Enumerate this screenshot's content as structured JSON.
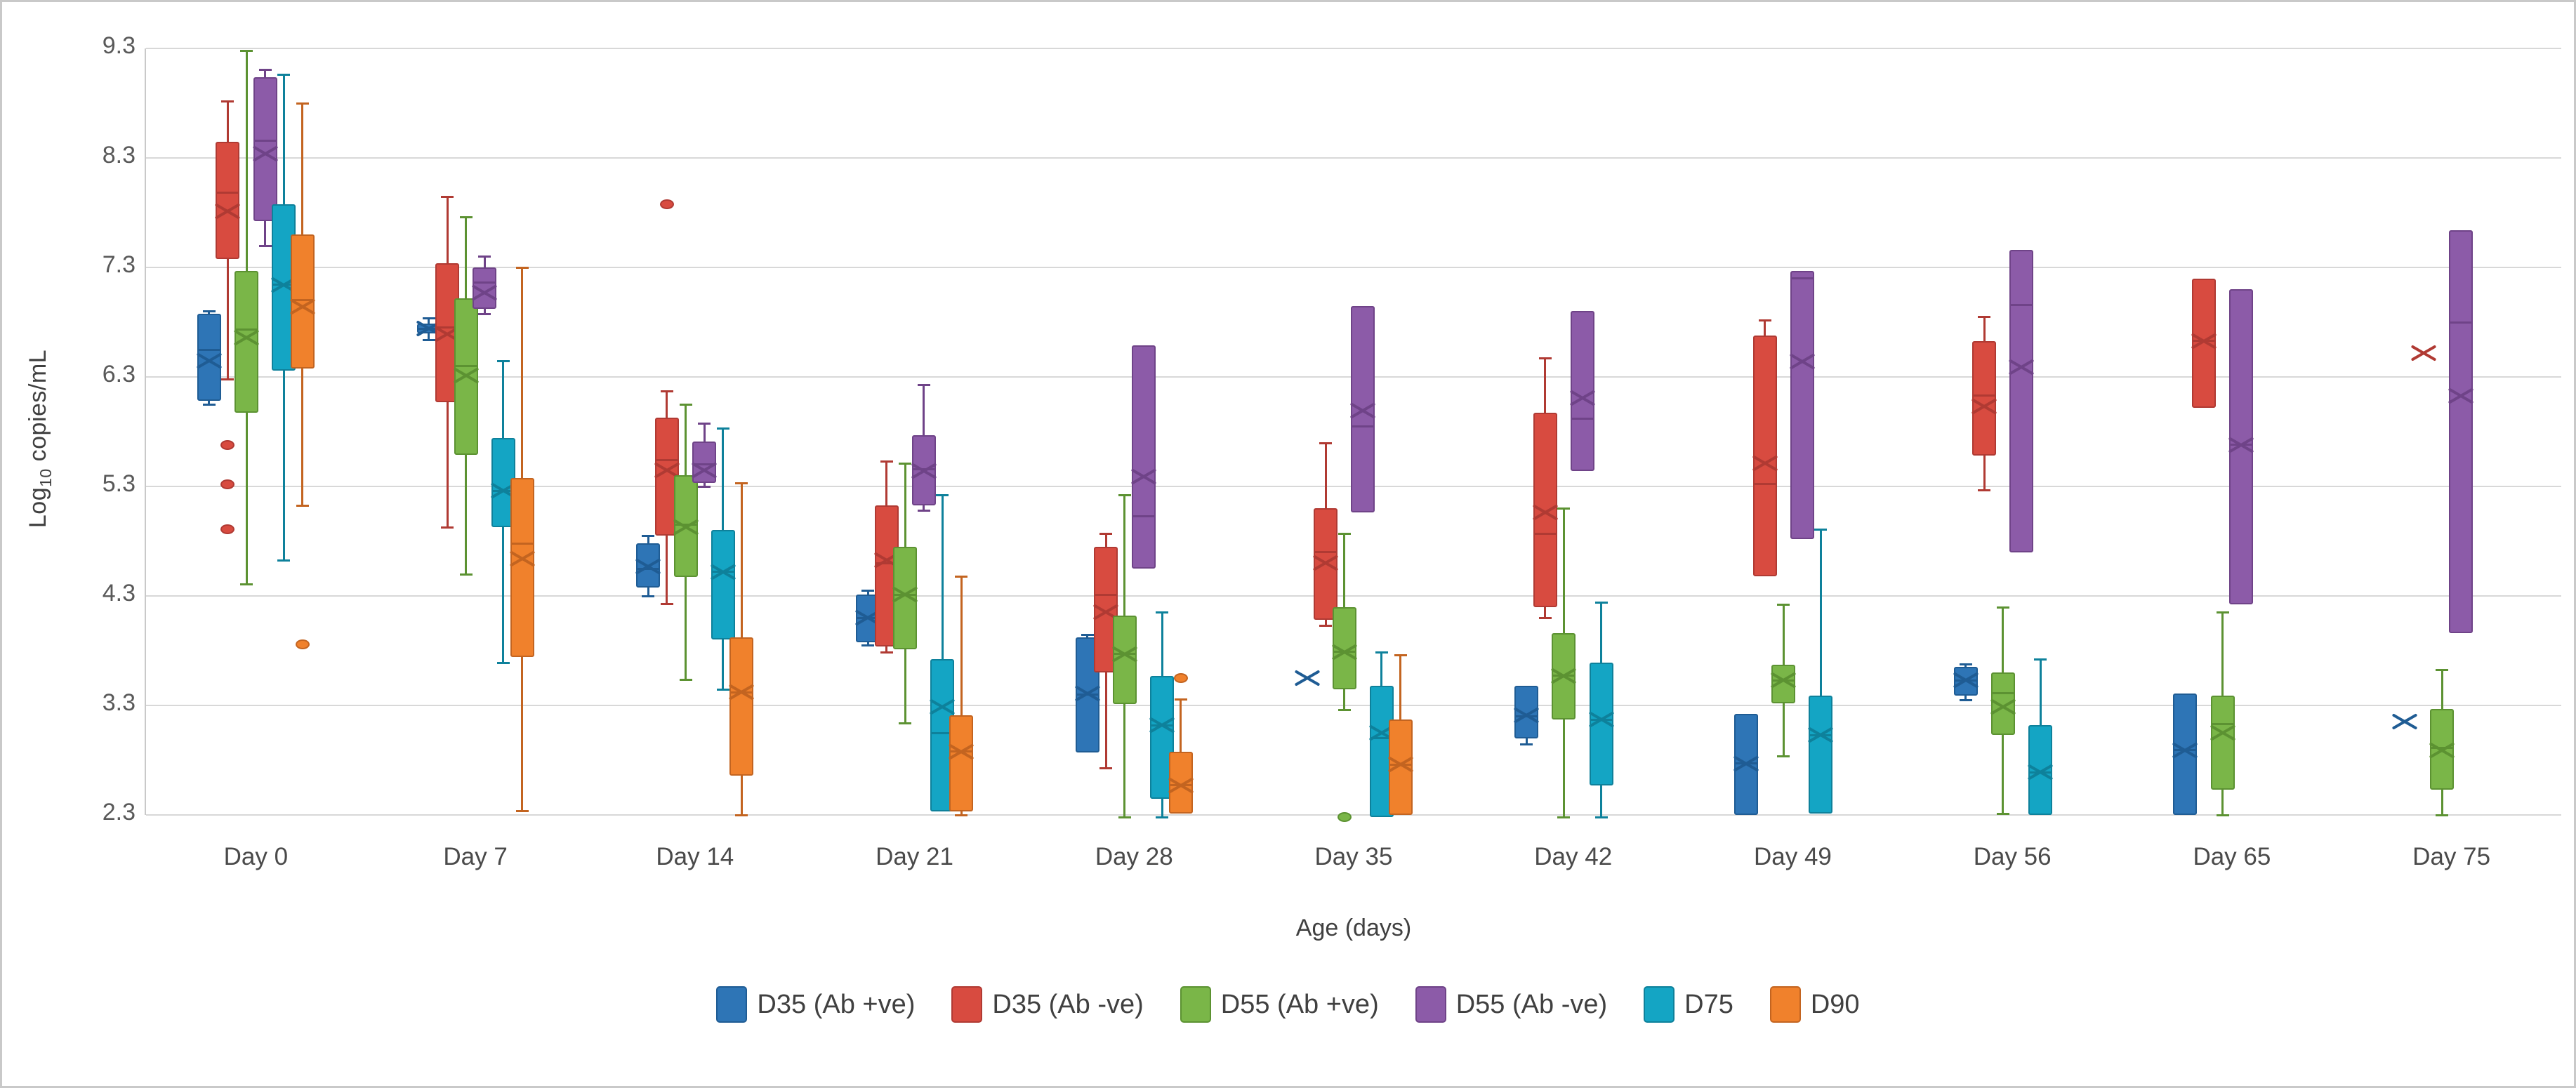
{
  "figure": {
    "y_axis_title": {
      "prefix": "Log",
      "sub": "10",
      "suffix": " copies/mL"
    },
    "x_axis_title": "Age (days)"
  },
  "chart_data": {
    "type": "boxplot",
    "title": "",
    "xlabel": "Age (days)",
    "ylabel": "Log10 copies/mL",
    "ylim": [
      2.3,
      9.3
    ],
    "yticks": [
      9.3,
      8.3,
      7.3,
      6.3,
      5.3,
      4.3,
      3.3,
      2.3
    ],
    "grid": "horizontal",
    "legend_position": "bottom",
    "categories": [
      "Day 0",
      "Day 7",
      "Day 14",
      "Day 21",
      "Day 28",
      "Day 35",
      "Day 42",
      "Day 49",
      "Day 56",
      "Day 65",
      "Day 75"
    ],
    "series": [
      {
        "name": "D35 (Ab +ve)",
        "color": "#2E75B6",
        "line": "#1F5C94",
        "boxes": [
          {
            "min": 6.05,
            "q1": 6.08,
            "med": 6.55,
            "q3": 6.88,
            "max": 6.9,
            "mean": 6.45
          },
          {
            "min": 6.64,
            "q1": 6.7,
            "med": 6.74,
            "q3": 6.79,
            "max": 6.84,
            "mean": 6.74
          },
          {
            "min": 4.3,
            "q1": 4.38,
            "med": 4.55,
            "q3": 4.78,
            "max": 4.85,
            "mean": 4.57
          },
          {
            "min": 3.85,
            "q1": 3.88,
            "med": 4.1,
            "q3": 4.31,
            "max": 4.35,
            "mean": 4.1
          },
          {
            "min": 2.85,
            "q1": 2.87,
            "med": 3.4,
            "q3": 3.92,
            "max": 3.95,
            "mean": 3.41
          },
          {
            "min": 3.55,
            "q1": 3.55,
            "med": 3.55,
            "q3": 3.55,
            "max": 3.55,
            "mean": 3.55
          },
          {
            "min": 2.95,
            "q1": 3.0,
            "med": 3.2,
            "q3": 3.48,
            "max": 3.5,
            "mean": 3.21
          },
          {
            "min": 2.3,
            "q1": 2.3,
            "med": 2.77,
            "q3": 3.22,
            "max": 3.22,
            "mean": 2.77
          },
          {
            "min": 3.35,
            "q1": 3.39,
            "med": 3.53,
            "q3": 3.65,
            "max": 3.68,
            "mean": 3.53
          },
          {
            "min": 2.3,
            "q1": 2.3,
            "med": 2.89,
            "q3": 3.41,
            "max": 3.41,
            "mean": 2.89
          },
          {
            "min": 3.15,
            "q1": 3.15,
            "med": 3.15,
            "q3": 3.15,
            "max": 3.15,
            "mean": 3.15
          }
        ]
      },
      {
        "name": "D35 (Ab -ve)",
        "color": "#D84B40",
        "line": "#B03A33",
        "boxes": [
          {
            "min": 6.28,
            "q1": 7.38,
            "med": 7.98,
            "q3": 8.45,
            "max": 8.82,
            "mean": 7.81,
            "outliers": [
              5.68,
              5.32,
              4.91
            ]
          },
          {
            "min": 4.93,
            "q1": 6.07,
            "med": 6.75,
            "q3": 7.34,
            "max": 7.95,
            "mean": 6.69
          },
          {
            "min": 4.23,
            "q1": 4.85,
            "med": 5.54,
            "q3": 5.93,
            "max": 6.17,
            "mean": 5.45,
            "outliers": [
              7.88
            ]
          },
          {
            "min": 3.79,
            "q1": 3.84,
            "med": 4.6,
            "q3": 5.13,
            "max": 5.53,
            "mean": 4.63
          },
          {
            "min": 2.73,
            "q1": 3.6,
            "med": 4.31,
            "q3": 4.75,
            "max": 4.87,
            "mean": 4.15
          },
          {
            "min": 4.03,
            "q1": 4.08,
            "med": 4.7,
            "q3": 5.1,
            "max": 5.7,
            "mean": 4.6
          },
          {
            "min": 4.1,
            "q1": 4.2,
            "med": 4.87,
            "q3": 5.97,
            "max": 6.47,
            "mean": 5.06
          },
          {
            "min": 4.48,
            "q1": 4.48,
            "med": 5.32,
            "q3": 6.68,
            "max": 6.82,
            "mean": 5.51
          },
          {
            "min": 5.27,
            "q1": 5.58,
            "med": 6.13,
            "q3": 6.63,
            "max": 6.85,
            "mean": 6.03
          },
          {
            "min": 6.02,
            "q1": 6.02,
            "med": 6.63,
            "q3": 7.2,
            "max": 7.2,
            "mean": 6.63
          },
          {
            "min": 6.52,
            "q1": 6.52,
            "med": 6.52,
            "q3": 6.52,
            "max": 6.52,
            "mean": 6.52
          }
        ]
      },
      {
        "name": "D55 (Ab +ve)",
        "color": "#7AB648",
        "line": "#5C9232",
        "boxes": [
          {
            "min": 4.41,
            "q1": 5.97,
            "med": 6.73,
            "q3": 7.27,
            "max": 9.28,
            "mean": 6.66
          },
          {
            "min": 4.5,
            "q1": 5.59,
            "med": 6.4,
            "q3": 7.02,
            "max": 7.76,
            "mean": 6.31
          },
          {
            "min": 3.54,
            "q1": 4.47,
            "med": 4.95,
            "q3": 5.4,
            "max": 6.05,
            "mean": 4.93
          },
          {
            "min": 3.14,
            "q1": 3.81,
            "med": 4.31,
            "q3": 4.75,
            "max": 5.51,
            "mean": 4.31
          },
          {
            "min": 2.28,
            "q1": 3.31,
            "med": 3.77,
            "q3": 4.12,
            "max": 5.22,
            "mean": 3.77
          },
          {
            "min": 3.26,
            "q1": 3.45,
            "med": 3.79,
            "q3": 4.2,
            "max": 4.87,
            "mean": 3.79,
            "outliers": [
              2.28
            ]
          },
          {
            "min": 2.28,
            "q1": 3.17,
            "med": 3.57,
            "q3": 3.96,
            "max": 5.1,
            "mean": 3.57
          },
          {
            "min": 2.84,
            "q1": 3.32,
            "med": 3.53,
            "q3": 3.67,
            "max": 4.22,
            "mean": 3.53
          },
          {
            "min": 2.31,
            "q1": 3.03,
            "med": 3.41,
            "q3": 3.6,
            "max": 4.2,
            "mean": 3.29
          },
          {
            "min": 2.3,
            "q1": 2.53,
            "med": 3.13,
            "q3": 3.39,
            "max": 4.15,
            "mean": 3.05
          },
          {
            "min": 2.3,
            "q1": 2.53,
            "med": 2.91,
            "q3": 3.27,
            "max": 3.63,
            "mean": 2.89
          }
        ]
      },
      {
        "name": "D55 (Ab -ve)",
        "color": "#8C5BA8",
        "line": "#6F4388",
        "boxes": [
          {
            "min": 7.5,
            "q1": 7.72,
            "med": 8.46,
            "q3": 9.04,
            "max": 9.11,
            "mean": 8.34
          },
          {
            "min": 6.88,
            "q1": 6.92,
            "med": 7.16,
            "q3": 7.3,
            "max": 7.4,
            "mean": 7.07
          },
          {
            "min": 5.3,
            "q1": 5.33,
            "med": 5.5,
            "q3": 5.71,
            "max": 5.88,
            "mean": 5.45
          },
          {
            "min": 5.08,
            "q1": 5.13,
            "med": 5.46,
            "q3": 5.77,
            "max": 6.23,
            "mean": 5.44
          },
          {
            "min": 4.55,
            "q1": 4.55,
            "med": 5.03,
            "q3": 6.59,
            "max": 6.59,
            "mean": 5.39
          },
          {
            "min": 5.06,
            "q1": 5.06,
            "med": 5.85,
            "q3": 6.95,
            "max": 6.95,
            "mean": 5.99
          },
          {
            "min": 5.44,
            "q1": 5.44,
            "med": 5.92,
            "q3": 6.9,
            "max": 6.9,
            "mean": 6.11
          },
          {
            "min": 4.82,
            "q1": 4.82,
            "med": 7.2,
            "q3": 7.27,
            "max": 7.27,
            "mean": 6.44
          },
          {
            "min": 4.7,
            "q1": 4.7,
            "med": 6.96,
            "q3": 7.46,
            "max": 7.46,
            "mean": 6.39
          },
          {
            "min": 4.22,
            "q1": 4.22,
            "med": 5.68,
            "q3": 7.1,
            "max": 7.1,
            "mean": 5.68
          },
          {
            "min": 3.96,
            "q1": 3.96,
            "med": 6.8,
            "q3": 7.64,
            "max": 7.64,
            "mean": 6.13
          }
        ]
      },
      {
        "name": "D75",
        "color": "#14A5C4",
        "line": "#0E819B",
        "boxes": [
          {
            "min": 4.63,
            "q1": 6.36,
            "med": 7.14,
            "q3": 7.88,
            "max": 9.06,
            "mean": 7.14
          },
          {
            "min": 3.69,
            "q1": 4.93,
            "med": 5.26,
            "q3": 5.74,
            "max": 6.45,
            "mean": 5.26
          },
          {
            "min": 3.45,
            "q1": 3.9,
            "med": 4.52,
            "q3": 4.9,
            "max": 5.83,
            "mean": 4.52
          },
          {
            "min": 2.31,
            "q1": 2.33,
            "med": 3.05,
            "q3": 3.72,
            "max": 5.22,
            "mean": 3.29
          },
          {
            "min": 2.28,
            "q1": 2.45,
            "med": 3.12,
            "q3": 3.57,
            "max": 4.15,
            "mean": 3.12
          },
          {
            "min": 2.28,
            "q1": 2.28,
            "med": 3.0,
            "q3": 3.48,
            "max": 3.79,
            "mean": 3.05
          },
          {
            "min": 2.28,
            "q1": 2.57,
            "med": 3.17,
            "q3": 3.69,
            "max": 4.24,
            "mean": 3.17
          },
          {
            "min": 2.31,
            "q1": 2.31,
            "med": 3.03,
            "q3": 3.39,
            "max": 4.91,
            "mean": 3.03
          },
          {
            "min": 2.3,
            "q1": 2.3,
            "med": 2.69,
            "q3": 3.12,
            "max": 3.72,
            "mean": 2.69
          },
          null,
          null
        ]
      },
      {
        "name": "D90",
        "color": "#F0812C",
        "line": "#C36420",
        "boxes": [
          {
            "min": 5.13,
            "q1": 6.38,
            "med": 7.0,
            "q3": 7.6,
            "max": 8.8,
            "mean": 6.94,
            "outliers": [
              3.86
            ]
          },
          {
            "min": 2.34,
            "q1": 3.74,
            "med": 4.78,
            "q3": 5.38,
            "max": 7.3,
            "mean": 4.64
          },
          {
            "min": 2.3,
            "q1": 2.66,
            "med": 3.42,
            "q3": 3.92,
            "max": 5.33,
            "mean": 3.42
          },
          {
            "min": 2.3,
            "q1": 2.33,
            "med": 2.88,
            "q3": 3.21,
            "max": 4.48,
            "mean": 2.88
          },
          {
            "min": 2.3,
            "q1": 2.31,
            "med": 2.57,
            "q3": 2.88,
            "max": 3.36,
            "mean": 2.57,
            "outliers": [
              3.55
            ]
          },
          {
            "min": 2.3,
            "q1": 2.3,
            "med": 2.76,
            "q3": 3.17,
            "max": 3.76,
            "mean": 2.76
          },
          null,
          null,
          null,
          null,
          null
        ]
      }
    ]
  }
}
